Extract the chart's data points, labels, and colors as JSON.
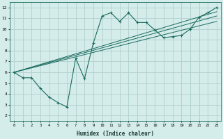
{
  "xlabel": "Humidex (Indice chaleur)",
  "ylabel": "",
  "bg_color": "#d4ecea",
  "line_color": "#1a6b5e",
  "grid_color": "#b0d0ce",
  "xlim": [
    -0.5,
    23.5
  ],
  "ylim": [
    1.5,
    12.5
  ],
  "xticks": [
    0,
    1,
    2,
    3,
    4,
    5,
    6,
    7,
    8,
    9,
    10,
    11,
    12,
    13,
    14,
    15,
    16,
    17,
    18,
    19,
    20,
    21,
    22,
    23
  ],
  "yticks": [
    2,
    3,
    4,
    5,
    6,
    7,
    8,
    9,
    10,
    11,
    12
  ],
  "main_series_x": [
    0,
    1,
    2,
    3,
    4,
    5,
    6,
    7,
    8,
    9,
    10,
    11,
    12,
    13,
    14,
    15,
    16,
    17,
    18,
    19,
    20,
    21,
    22,
    23
  ],
  "main_series_y": [
    6.0,
    5.5,
    5.5,
    4.5,
    3.7,
    3.2,
    2.8,
    7.3,
    5.4,
    8.7,
    11.2,
    11.5,
    10.7,
    11.5,
    10.6,
    10.6,
    9.9,
    9.2,
    9.3,
    9.4,
    10.0,
    11.1,
    11.5,
    12.0
  ],
  "line1_x": [
    0,
    23
  ],
  "line1_y": [
    6.0,
    11.6
  ],
  "line2_x": [
    0,
    23
  ],
  "line2_y": [
    6.0,
    11.2
  ],
  "line3_x": [
    0,
    23
  ],
  "line3_y": [
    6.0,
    10.7
  ]
}
